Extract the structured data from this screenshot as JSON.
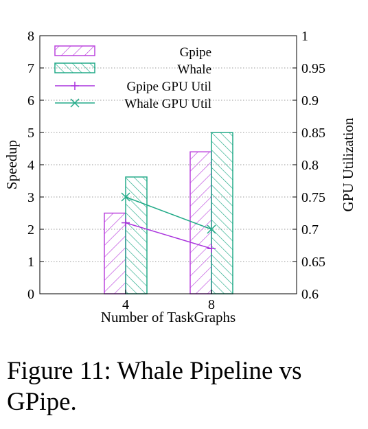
{
  "chart_data": {
    "type": "bar",
    "categories": [
      "4",
      "8"
    ],
    "xlabel": "Number of TaskGraphs",
    "ylabel": "Speedup",
    "ylabel_right": "GPU Utilization",
    "ylim": [
      0,
      8
    ],
    "ylim_right": [
      0.6,
      1.0
    ],
    "yticks": [
      "0",
      "1",
      "2",
      "3",
      "4",
      "5",
      "6",
      "7",
      "8"
    ],
    "yticks_right": [
      "0.6",
      "0.65",
      "0.7",
      "0.75",
      "0.8",
      "0.85",
      "0.9",
      "0.95",
      "1"
    ],
    "grid": "dotted horizontal",
    "legend_position": "top-left",
    "series": [
      {
        "name": "Gpipe",
        "kind": "bar",
        "axis": "left",
        "values": [
          2.5,
          4.4
        ],
        "color": "#bb44dd",
        "pattern": "diagonal-up"
      },
      {
        "name": "Whale",
        "kind": "bar",
        "axis": "left",
        "values": [
          3.62,
          5.0
        ],
        "color": "#22aa88",
        "pattern": "diagonal-down"
      },
      {
        "name": "Gpipe GPU Util",
        "kind": "line",
        "axis": "right",
        "marker": "plus",
        "values": [
          0.71,
          0.67
        ],
        "color": "#aa33dd"
      },
      {
        "name": "Whale GPU Util",
        "kind": "line",
        "axis": "right",
        "marker": "cross",
        "values": [
          0.75,
          0.7
        ],
        "color": "#22aa88"
      }
    ]
  },
  "caption": "Figure 11: Whale Pipeline vs GPipe."
}
